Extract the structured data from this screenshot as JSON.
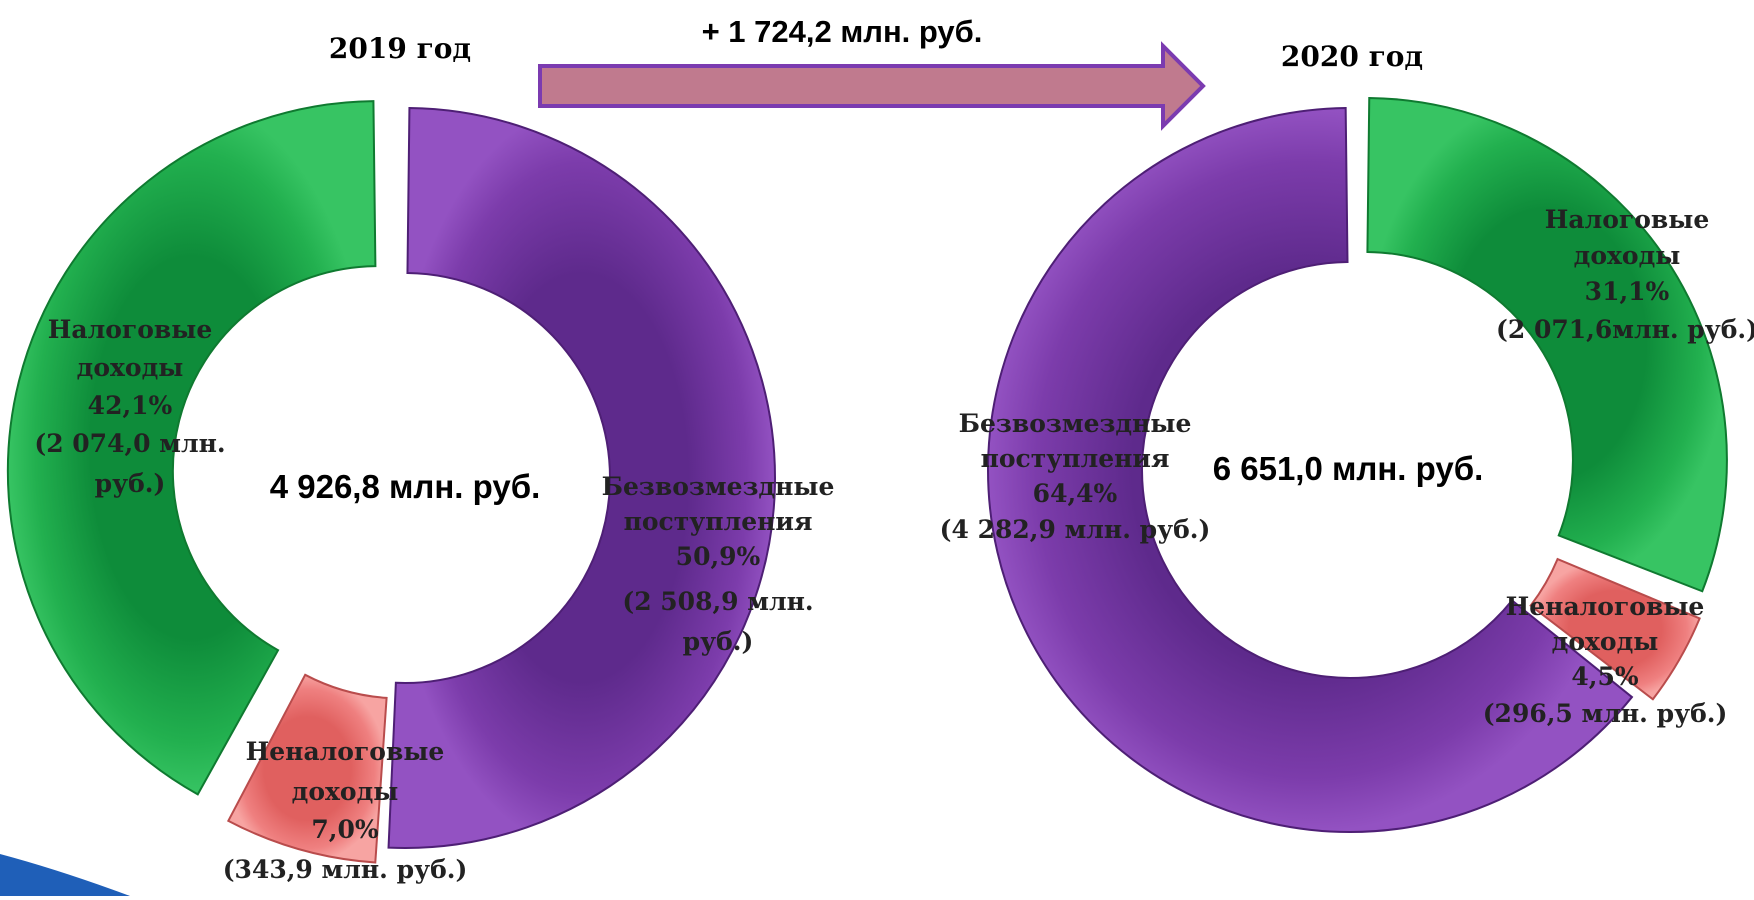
{
  "change": {
    "label": "+ 1 724,2 млн. руб."
  },
  "colors": {
    "tax": "#1fa84a",
    "tax_edge": "#0f7a30",
    "grants": "#7a3aa8",
    "grants_edge": "#4e1f75",
    "nontax": "#ec7b7b",
    "nontax_edge": "#b94c4c",
    "arrow_fill": "#c07a8e",
    "arrow_edge": "#7b3bb0",
    "corner": "#1f5fb8"
  },
  "chart_data": [
    {
      "type": "pie",
      "year_label": "2019 год",
      "total_label": "4 926,8 млн. руб.",
      "slices": [
        {
          "key": "grants",
          "name": "Безвозмездные поступления",
          "value": 50.9,
          "percent": "50,9%",
          "amount": "(2 508,9 млн. руб.)"
        },
        {
          "key": "nontax",
          "name": "Неналоговые доходы",
          "value": 7.0,
          "percent": "7,0%",
          "amount": "(343,9 млн. руб.)"
        },
        {
          "key": "tax",
          "name": "Налоговые доходы",
          "value": 42.1,
          "percent": "42,1%",
          "amount": "(2 074,0 млн. руб.)"
        }
      ]
    },
    {
      "type": "pie",
      "year_label": "2020 год",
      "total_label": "6 651,0 млн. руб.",
      "slices": [
        {
          "key": "tax",
          "name": "Налоговые доходы",
          "value": 31.1,
          "percent": "31,1%",
          "amount": "(2 071,6млн. руб.)"
        },
        {
          "key": "nontax",
          "name": "Неналоговые доходы",
          "value": 4.5,
          "percent": "4,5%",
          "amount": "(296,5 млн. руб.)"
        },
        {
          "key": "grants",
          "name": "Безвозмездные поступления",
          "value": 64.4,
          "percent": "64,4%",
          "amount": "(4 282,9 млн. руб.)"
        }
      ]
    }
  ]
}
